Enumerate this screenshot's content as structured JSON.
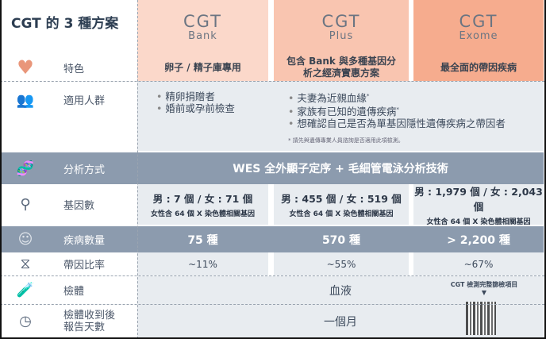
{
  "title": "CGT 的 3 種方案",
  "plans": [
    {
      "name": "CGT",
      "sub": "Bank",
      "feature": "卵子 / 精子庫專用",
      "genes_main": "男 : 7 個 / 女 : 71 個",
      "genes_note": "女性含 64 個 X 染色體相關基因",
      "diseases": "75 種",
      "carrier_rate": "~11%"
    },
    {
      "name": "CGT",
      "sub": "Plus",
      "feature": "包含 Bank 與多種基因分析之經濟實惠方案",
      "genes_main": "男 : 455 個 / 女 : 519 個",
      "genes_note": "女性含 64 個 X 染色體相關基因",
      "diseases": "570 種",
      "carrier_rate": "~55%"
    },
    {
      "name": "CGT",
      "sub": "Exome",
      "feature": "最全面的帶因疾病",
      "genes_main": "男 : 1,979 個 / 女 : 2,043 個",
      "genes_note": "女性含 64 個 X 染色體相關基因",
      "diseases": "> 2,200 種",
      "carrier_rate": "~67%"
    }
  ],
  "rows": {
    "feature": {
      "label": "特色",
      "icon": "heart-icon"
    },
    "population": {
      "label": "適用人群",
      "icon": "people-icon"
    },
    "method": {
      "label": "分析方式",
      "icon": "dna-icon",
      "value": "WES 全外顯子定序 + 毛細管電泳分析技術"
    },
    "genes": {
      "label": "基因數",
      "icon": "dna-search-icon"
    },
    "diseases": {
      "label": "疾病數量",
      "icon": "face-icon"
    },
    "ratio": {
      "label": "帶因比率",
      "icon": "dna-strand-icon"
    },
    "specimen": {
      "label": "檢體",
      "icon": "test-tube-icon",
      "value": "血液"
    },
    "days": {
      "label": "檢體收到後報告天數",
      "icon": "clock-icon",
      "value": "一個月"
    }
  },
  "population": {
    "left": [
      "精卵捐贈者",
      "婚前或孕前檢查"
    ],
    "right": [
      "夫妻為近親血緣",
      "家族有已知的遺傳疾病",
      "想確認自己是否為單基因隱性遺傳疾病之帶因者"
    ],
    "footnote": "* 請先與遺傳專業人員諮詢是否適用此項檢測。"
  },
  "qr": {
    "caption": "CGT 檢測完整篩檢項目",
    "arrow": "▼"
  },
  "colors": {
    "bank": "#fbd8ca",
    "plus": "#f9c5b0",
    "exome": "#f6ac8e",
    "dark_row": "#8c9bae"
  }
}
